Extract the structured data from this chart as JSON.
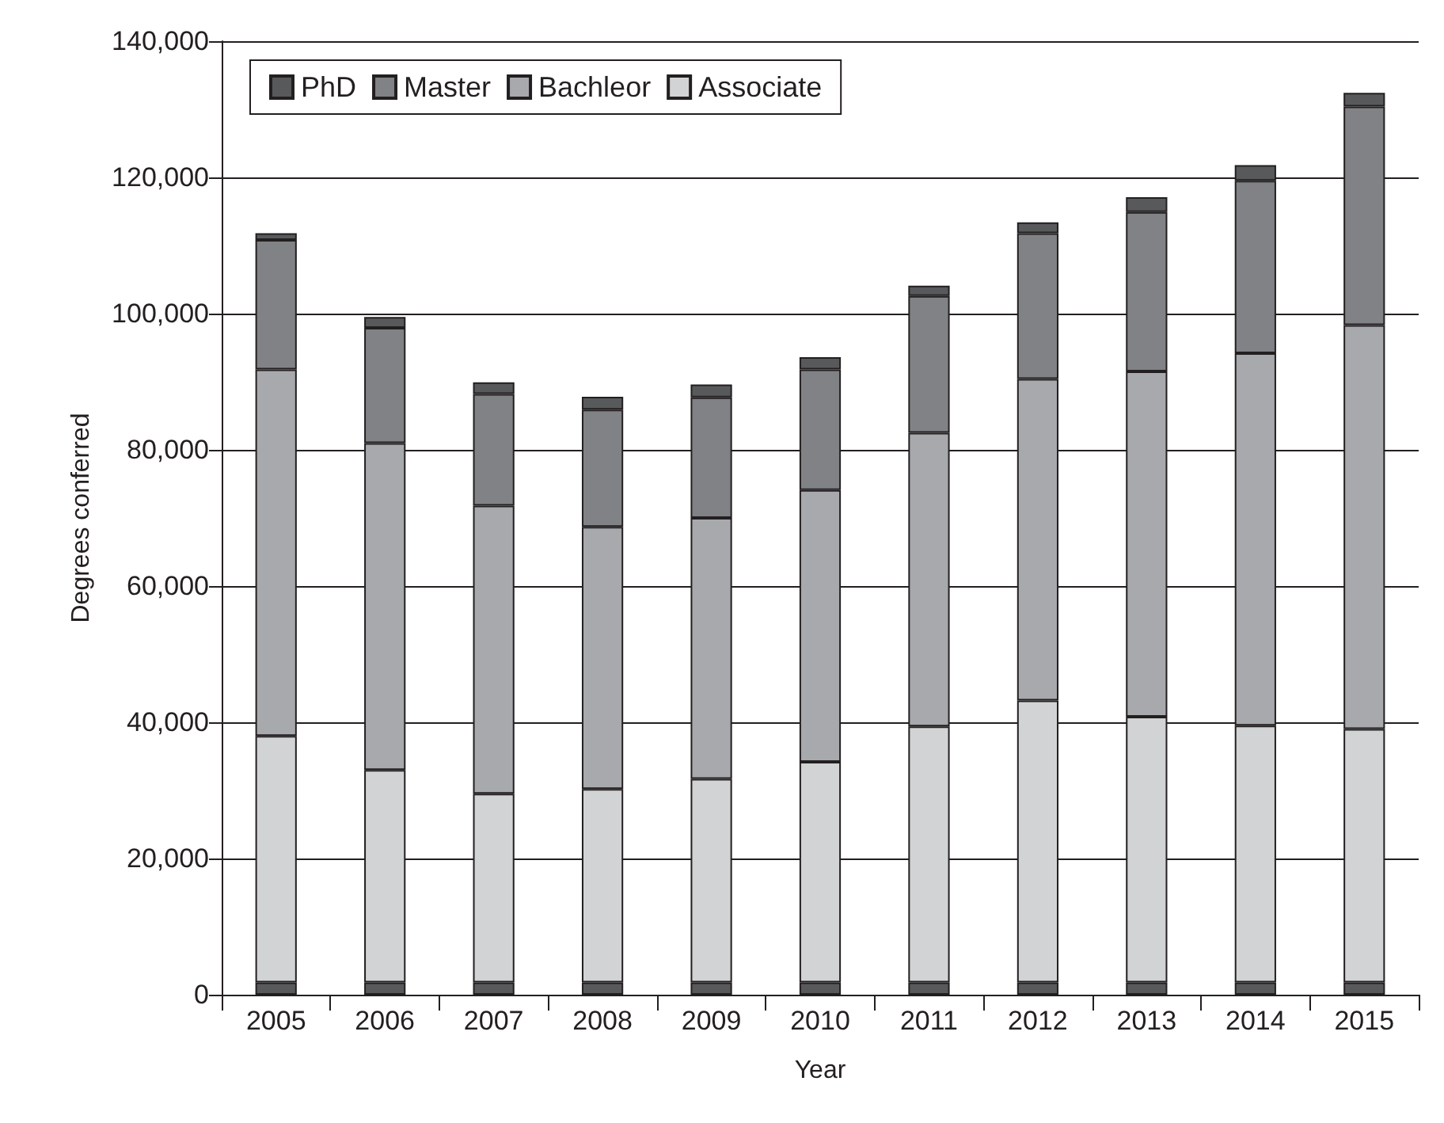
{
  "chart_data": {
    "type": "bar",
    "stacked": true,
    "xlabel": "Year",
    "ylabel": "Degrees conferred",
    "categories": [
      "2005",
      "2006",
      "2007",
      "2008",
      "2009",
      "2010",
      "2011",
      "2012",
      "2013",
      "2014",
      "2015"
    ],
    "series": [
      {
        "color": "#58595b",
        "values": [
          1800,
          1800,
          1800,
          1800,
          1800,
          1800,
          1800,
          1800,
          1800,
          1800,
          1800
        ]
      },
      {
        "name": "Associate",
        "color": "#d1d3d4",
        "values": [
          36200,
          31200,
          27700,
          28400,
          29900,
          32400,
          37600,
          41400,
          39000,
          37700,
          37200
        ]
      },
      {
        "name": "Bachleor",
        "color": "#a7a9ac",
        "values": [
          53800,
          48000,
          42300,
          38500,
          38300,
          39900,
          43100,
          47200,
          50700,
          54700,
          59300
        ]
      },
      {
        "name": "Master",
        "color": "#808285",
        "values": [
          19000,
          16900,
          16400,
          17200,
          17700,
          17700,
          20100,
          21400,
          23400,
          25300,
          32100
        ]
      },
      {
        "name": "PhD",
        "color": "#58595b",
        "values": [
          1000,
          1600,
          1700,
          1900,
          1900,
          1800,
          1500,
          1600,
          2200,
          2300,
          2000
        ]
      }
    ],
    "ylim": [
      0,
      140000
    ],
    "yticks": [
      {
        "value": 0,
        "label": "0"
      },
      {
        "value": 20000,
        "label": "20,000"
      },
      {
        "value": 40000,
        "label": "40,000"
      },
      {
        "value": 60000,
        "label": "60,000"
      },
      {
        "value": 80000,
        "label": "80,000"
      },
      {
        "value": 100000,
        "label": "100,000"
      },
      {
        "value": 120000,
        "label": "120,000"
      },
      {
        "value": 140000,
        "label": "140,000"
      }
    ],
    "grid": "y",
    "legend": "top left"
  }
}
